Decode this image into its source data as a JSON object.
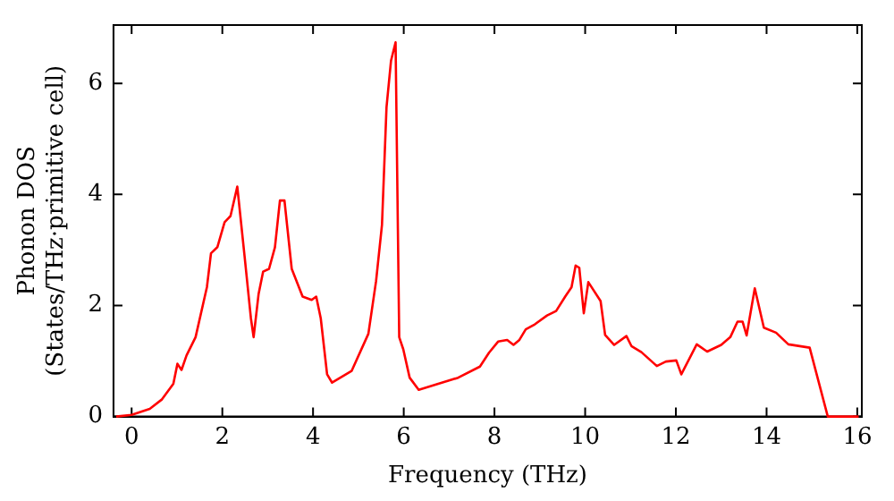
{
  "chart_data": {
    "type": "line",
    "xlabel": "Frequency (THz)",
    "ylabel": "Phonon DOS\n(States/THz·primitive cell)",
    "xlim": [
      -0.4,
      16.1
    ],
    "ylim": [
      0,
      7.05
    ],
    "xticks": [
      0,
      2,
      4,
      6,
      8,
      10,
      12,
      14,
      16
    ],
    "yticks": [
      0,
      2,
      4,
      6
    ],
    "grid": false,
    "legend": false,
    "marker": "none",
    "line_style": "solid",
    "x": [
      -0.34,
      0,
      0.4,
      0.67,
      0.92,
      1.01,
      1.1,
      1.21,
      1.41,
      1.66,
      1.75,
      1.89,
      2.05,
      2.18,
      2.33,
      2.49,
      2.63,
      2.69,
      2.8,
      2.9,
      3.03,
      3.16,
      3.27,
      3.37,
      3.53,
      3.77,
      3.97,
      4.07,
      4.17,
      4.31,
      4.42,
      4.85,
      5.22,
      5.39,
      5.52,
      5.62,
      5.72,
      5.82,
      5.9,
      5.99,
      6.13,
      6.33,
      7.2,
      7.68,
      7.88,
      8.08,
      8.28,
      8.42,
      8.55,
      8.69,
      8.89,
      9.16,
      9.36,
      9.56,
      9.7,
      9.79,
      9.87,
      9.97,
      10.07,
      10.34,
      10.44,
      10.64,
      10.91,
      11.02,
      11.24,
      11.58,
      11.78,
      12.01,
      12.12,
      12.46,
      12.69,
      13.0,
      13.2,
      13.36,
      13.47,
      13.56,
      13.74,
      13.94,
      14.21,
      14.48,
      14.95,
      15.35,
      16.03
    ],
    "series": [
      {
        "color": "#ff0000",
        "values": [
          0,
          0.03,
          0.14,
          0.31,
          0.59,
          0.95,
          0.84,
          1.1,
          1.43,
          2.33,
          2.94,
          3.05,
          3.5,
          3.61,
          4.14,
          2.89,
          1.77,
          1.43,
          2.21,
          2.61,
          2.66,
          3.05,
          3.89,
          3.89,
          2.66,
          2.16,
          2.1,
          2.16,
          1.77,
          0.76,
          0.61,
          0.82,
          1.49,
          2.44,
          3.45,
          5.57,
          6.41,
          6.74,
          1.43,
          1.21,
          0.7,
          0.48,
          0.7,
          0.9,
          1.15,
          1.35,
          1.38,
          1.29,
          1.38,
          1.57,
          1.66,
          1.82,
          1.9,
          2.16,
          2.33,
          2.72,
          2.68,
          1.86,
          2.42,
          2.08,
          1.47,
          1.29,
          1.45,
          1.27,
          1.16,
          0.91,
          0.99,
          1.01,
          0.76,
          1.3,
          1.17,
          1.29,
          1.43,
          1.71,
          1.71,
          1.46,
          2.31,
          1.6,
          1.51,
          1.3,
          1.24,
          0,
          0
        ]
      }
    ]
  }
}
